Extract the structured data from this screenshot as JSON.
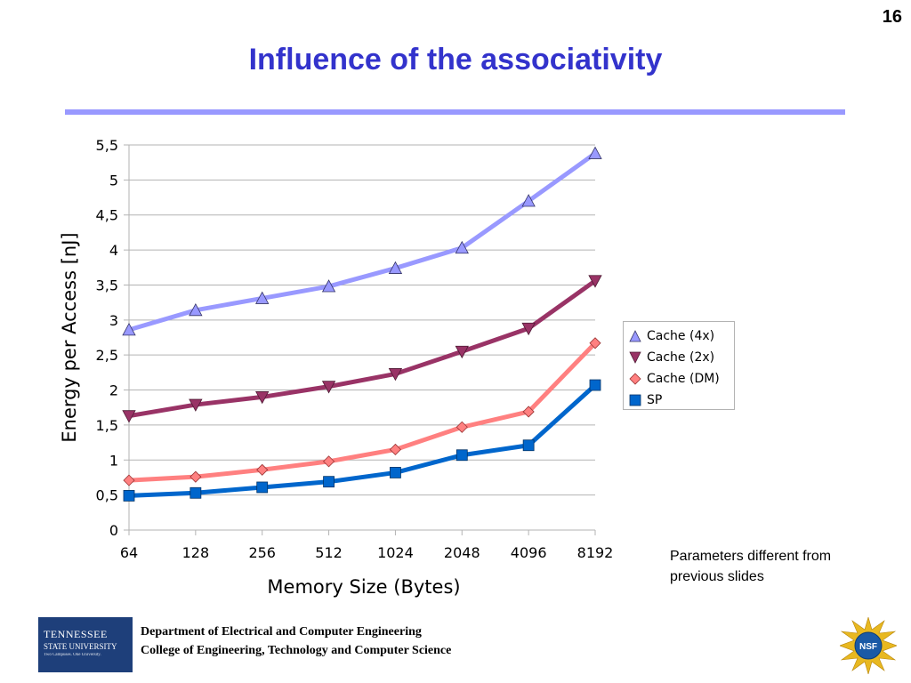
{
  "slide": {
    "number": "16",
    "title": "Influence of the associativity"
  },
  "chart_data": {
    "type": "line",
    "title": "",
    "xlabel": "Memory Size (Bytes)",
    "ylabel": "Energy per Access [nJ]",
    "categories": [
      "64",
      "128",
      "256",
      "512",
      "1024",
      "2048",
      "4096",
      "8192"
    ],
    "ylim": [
      0,
      5.5
    ],
    "yticks": [
      "0",
      "0,5",
      "1",
      "1,5",
      "2",
      "2,5",
      "3",
      "3,5",
      "4",
      "4,5",
      "5",
      "5,5"
    ],
    "grid": true,
    "legend_position": "right",
    "series": [
      {
        "name": "Cache (4x)",
        "color": "#9999ff",
        "marker": "triangle-up",
        "values": [
          2.86,
          3.14,
          3.31,
          3.48,
          3.74,
          4.03,
          4.7,
          5.38
        ]
      },
      {
        "name": "Cache (2x)",
        "color": "#993366",
        "marker": "triangle-down",
        "values": [
          1.63,
          1.79,
          1.9,
          2.05,
          2.23,
          2.55,
          2.88,
          3.56
        ]
      },
      {
        "name": "Cache (DM)",
        "color": "#ff8080",
        "marker": "diamond",
        "values": [
          0.71,
          0.76,
          0.86,
          0.98,
          1.15,
          1.47,
          1.69,
          2.67
        ]
      },
      {
        "name": "SP",
        "color": "#0066cc",
        "marker": "square",
        "values": [
          0.49,
          0.53,
          0.61,
          0.69,
          0.82,
          1.07,
          1.21,
          2.07
        ]
      }
    ]
  },
  "side_note": {
    "line1": "Parameters different from",
    "line2": "previous slides"
  },
  "footer": {
    "dept": "Department of Electrical and Computer Engineering",
    "college": "College of Engineering, Technology and Computer Science",
    "logo_line1": "TENNESSEE",
    "logo_line2": "STATE UNIVERSITY",
    "logo_line3": "Two Campuses. One University.",
    "nsf_text": "NSF"
  }
}
